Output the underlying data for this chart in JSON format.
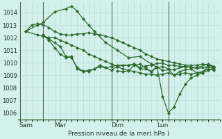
{
  "background_color": "#d4f0eb",
  "grid_color": "#b8ddd6",
  "line_color": "#2d6a2d",
  "xlabel": "Pression niveau de la mer( hPa )",
  "ylim": [
    1005.5,
    1014.8
  ],
  "yticks": [
    1006,
    1007,
    1008,
    1009,
    1010,
    1011,
    1012,
    1013,
    1014
  ],
  "xtick_labels": [
    "Sam",
    "Mar",
    "Dim",
    "Lun"
  ],
  "xtick_positions": [
    0.5,
    3.5,
    8.5,
    12.5
  ],
  "vline_positions": [
    0,
    2,
    8,
    13
  ],
  "xlim": [
    -0.2,
    17.5
  ],
  "series_A_x": [
    0.5,
    1.0,
    1.5,
    2.0,
    2.5,
    3.0,
    3.5,
    4.0,
    4.5,
    5.0,
    5.5,
    6.0,
    6.5,
    7.0,
    7.5,
    8.0,
    8.5,
    9.0,
    9.5,
    10.0,
    10.5,
    11.0,
    11.5,
    12.0,
    12.5,
    13.0,
    13.5,
    14.0,
    14.5,
    15.0,
    15.5,
    16.0,
    16.5,
    17.0
  ],
  "series_A": [
    1012.5,
    1013.0,
    1013.1,
    1013.0,
    1012.8,
    1012.5,
    1012.3,
    1012.2,
    1012.2,
    1012.3,
    1012.3,
    1012.4,
    1012.3,
    1012.2,
    1012.1,
    1012.0,
    1011.8,
    1011.6,
    1011.4,
    1011.2,
    1011.0,
    1010.7,
    1010.5,
    1010.3,
    1010.2,
    1010.1,
    1010.0,
    1009.9,
    1009.8,
    1009.8,
    1009.8,
    1009.9,
    1009.8,
    1009.7
  ],
  "series_B_x": [
    0.5,
    1.5,
    2.0,
    3.0,
    4.0,
    4.5,
    5.0,
    5.5,
    6.0,
    6.5,
    7.5,
    8.5,
    9.5,
    10.5,
    11.5,
    12.5,
    13.5,
    14.5,
    15.5,
    16.5,
    17.0
  ],
  "series_B": [
    1012.5,
    1013.0,
    1013.2,
    1014.05,
    1014.3,
    1014.5,
    1014.1,
    1013.5,
    1013.0,
    1012.5,
    1011.6,
    1011.0,
    1010.4,
    1010.5,
    1009.9,
    1009.4,
    1009.45,
    1009.7,
    1009.6,
    1009.9,
    1009.7
  ],
  "series_C_x": [
    0.5,
    1.5,
    2.0,
    2.5,
    3.0,
    3.5,
    4.0,
    4.5,
    5.0,
    5.5,
    6.0,
    6.5,
    7.0,
    7.5,
    8.0,
    8.5,
    9.0,
    9.5,
    10.0,
    10.5,
    11.0,
    11.5,
    12.0,
    12.5,
    13.0,
    13.5,
    14.0,
    14.5,
    15.0,
    15.5,
    16.0,
    16.5,
    17.0
  ],
  "series_C": [
    1012.5,
    1012.2,
    1012.1,
    1012.0,
    1012.0,
    1011.8,
    1011.6,
    1011.4,
    1011.2,
    1011.0,
    1010.7,
    1010.5,
    1010.3,
    1010.1,
    1009.9,
    1009.7,
    1009.5,
    1009.4,
    1009.3,
    1009.2,
    1009.1,
    1009.1,
    1009.0,
    1009.1,
    1009.2,
    1009.0,
    1009.1,
    1009.2,
    1009.1,
    1009.2,
    1009.3,
    1009.5,
    1009.4
  ],
  "series_D_x": [
    2.0,
    2.5,
    3.0,
    3.5,
    4.0,
    4.5,
    5.0,
    5.5,
    6.0,
    6.5,
    7.0,
    7.5,
    8.0,
    8.5,
    9.0,
    9.5,
    10.0,
    10.5,
    11.0,
    11.5,
    12.0,
    12.5,
    13.0,
    13.5,
    14.0,
    14.5,
    15.0,
    15.5,
    16.0,
    16.5,
    17.0
  ],
  "series_D": [
    1012.2,
    1011.9,
    1011.6,
    1011.3,
    1010.5,
    1010.4,
    1009.6,
    1009.35,
    1009.3,
    1009.5,
    1009.7,
    1009.6,
    1009.4,
    1009.7,
    1009.8,
    1009.8,
    1009.9,
    1009.5,
    1009.5,
    1009.3,
    1009.6,
    1009.7,
    1009.5,
    1009.0,
    1009.3,
    1009.45,
    1009.5,
    1009.2,
    1009.2,
    1009.4,
    1009.6
  ],
  "series_E_x": [
    2.0,
    2.5,
    3.0,
    3.5,
    4.0,
    4.5,
    5.0,
    5.5,
    6.0,
    6.5,
    7.0,
    7.5,
    8.0,
    8.5,
    9.0,
    9.5,
    10.0,
    10.5,
    11.0,
    11.5,
    12.0,
    12.5,
    13.0,
    13.5,
    14.0,
    14.5,
    15.0,
    15.5,
    16.0,
    16.5,
    17.0
  ],
  "series_E": [
    1012.2,
    1011.8,
    1011.2,
    1010.7,
    1010.4,
    1010.5,
    1009.5,
    1009.3,
    1009.4,
    1009.5,
    1009.8,
    1009.6,
    1009.7,
    1009.8,
    1009.8,
    1009.8,
    1009.9,
    1009.6,
    1009.75,
    1009.8,
    1009.95,
    1009.95,
    1009.8,
    1009.8,
    1009.7,
    1009.7,
    1009.6,
    1009.55,
    1009.6,
    1009.7,
    1009.5
  ],
  "series_F_x": [
    8.5,
    9.0,
    9.5,
    10.0,
    10.5,
    11.0,
    11.5,
    12.0,
    12.5,
    13.0,
    13.5,
    14.0,
    14.5,
    15.0,
    15.5,
    16.0,
    16.5,
    17.0
  ],
  "series_F": [
    1009.35,
    1009.3,
    1009.35,
    1009.8,
    1009.9,
    1009.6,
    1009.3,
    1009.7,
    1007.3,
    1006.0,
    1006.5,
    1007.5,
    1008.3,
    1008.8,
    1009.0,
    1009.2,
    1009.8,
    1009.65
  ],
  "figsize": [
    3.2,
    2.0
  ],
  "dpi": 100
}
